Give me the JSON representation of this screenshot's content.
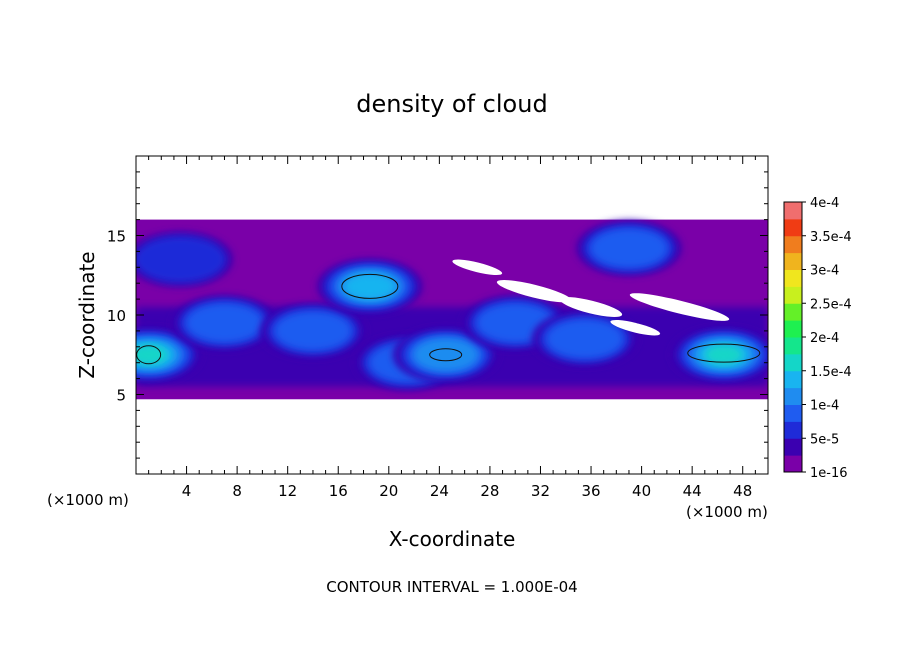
{
  "chart_data": {
    "type": "heatmap",
    "title": "density of cloud",
    "xlabel": "X-coordinate",
    "ylabel": "Z-coordinate",
    "x_unit": "(×1000 m)",
    "z_unit": "(×1000 m)",
    "xlim": [
      0,
      50
    ],
    "ylim": [
      0,
      20
    ],
    "x_ticks": [
      4,
      8,
      12,
      16,
      20,
      24,
      28,
      32,
      36,
      40,
      44,
      48
    ],
    "y_ticks": [
      5,
      10,
      15
    ],
    "footer": "CONTOUR INTERVAL = 1.000E-04",
    "colorbar": {
      "labels": [
        "4e-4",
        "3.5e-4",
        "3e-4",
        "2.5e-4",
        "2e-4",
        "1.5e-4",
        "1e-4",
        "5e-5",
        "1e-16"
      ],
      "levels": [
        1e-16,
        2.5e-05,
        5e-05,
        7.5e-05,
        0.0001,
        0.000125,
        0.00015,
        0.000175,
        0.0002,
        0.000225,
        0.00025,
        0.000275,
        0.0003,
        0.000325,
        0.00035,
        0.000375,
        0.0004
      ],
      "colors": [
        "#7a00a8",
        "#3b00b0",
        "#1f2bd8",
        "#1f5cf0",
        "#1f8cf0",
        "#19b4f0",
        "#14d6c8",
        "#14e68c",
        "#1ef050",
        "#64f028",
        "#c8f01e",
        "#f0e61e",
        "#f0b41e",
        "#f07d1e",
        "#f03c14",
        "#f06e6e"
      ]
    },
    "cloud_blobs": [
      {
        "x": 3.5,
        "z": 13.5,
        "level": 2
      },
      {
        "x": 1,
        "z": 7.5,
        "level": 6
      },
      {
        "x": 7,
        "z": 9.5,
        "level": 3
      },
      {
        "x": 14,
        "z": 9,
        "level": 3
      },
      {
        "x": 18.5,
        "z": 11.8,
        "level": 5
      },
      {
        "x": 21.5,
        "z": 7,
        "level": 3
      },
      {
        "x": 24.5,
        "z": 7.5,
        "level": 4
      },
      {
        "x": 30,
        "z": 9.5,
        "level": 3
      },
      {
        "x": 35.5,
        "z": 8.5,
        "level": 3
      },
      {
        "x": 39,
        "z": 14.2,
        "level": 3
      },
      {
        "x": 46.5,
        "z": 7.5,
        "level": 6
      }
    ]
  }
}
